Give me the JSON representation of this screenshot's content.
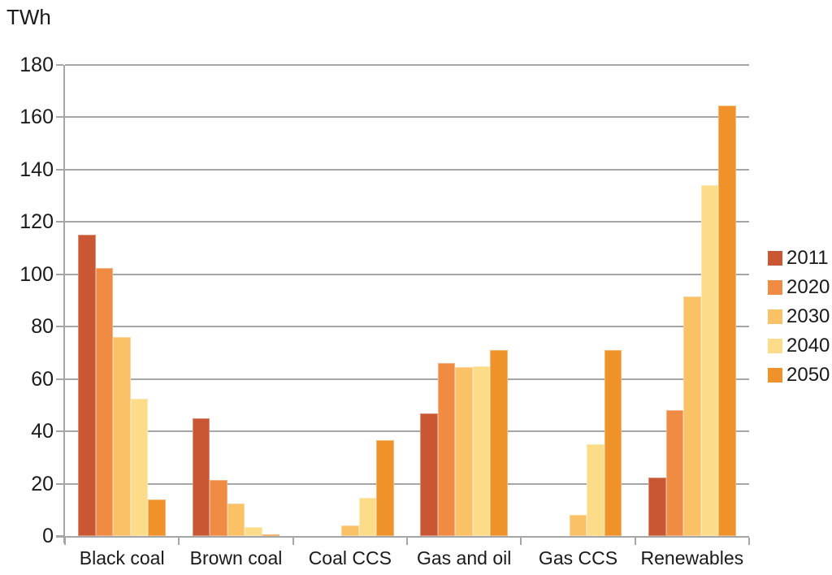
{
  "title": "TWh",
  "chart_data": {
    "type": "bar",
    "title": "TWh",
    "subtitle": "",
    "xlabel": "",
    "ylabel": "TWh",
    "categories": [
      "Black coal",
      "Brown coal",
      "Coal CCS",
      "Gas and oil",
      "Gas CCS",
      "Renewables"
    ],
    "series": [
      {
        "name": "2011",
        "color": "#C95733",
        "values": [
          115,
          45,
          0,
          47,
          0,
          22.5
        ]
      },
      {
        "name": "2020",
        "color": "#F08B44",
        "values": [
          102.5,
          21.5,
          0,
          66,
          0,
          48
        ]
      },
      {
        "name": "2030",
        "color": "#FBC167",
        "values": [
          76,
          12.5,
          4,
          64.5,
          8,
          91.5
        ]
      },
      {
        "name": "2040",
        "color": "#FCDC88",
        "values": [
          52.5,
          3.5,
          14.5,
          65,
          35,
          134
        ]
      },
      {
        "name": "2050",
        "color": "#EF9229",
        "values": [
          14,
          0.7,
          36.5,
          71,
          71,
          164.5
        ]
      }
    ],
    "legend_entries": [
      "2011",
      "2020",
      "2030",
      "2040",
      "2050"
    ],
    "legend_position": "right",
    "ylim": [
      0,
      180
    ],
    "yticks": [
      0,
      20,
      40,
      60,
      80,
      100,
      120,
      140,
      160,
      180
    ],
    "grid": true,
    "background_color": "#FFFFFF",
    "gridline_color": "#A6A6A6",
    "axis_color": "#A6A6A6",
    "text_color": "#1A1A1A"
  }
}
